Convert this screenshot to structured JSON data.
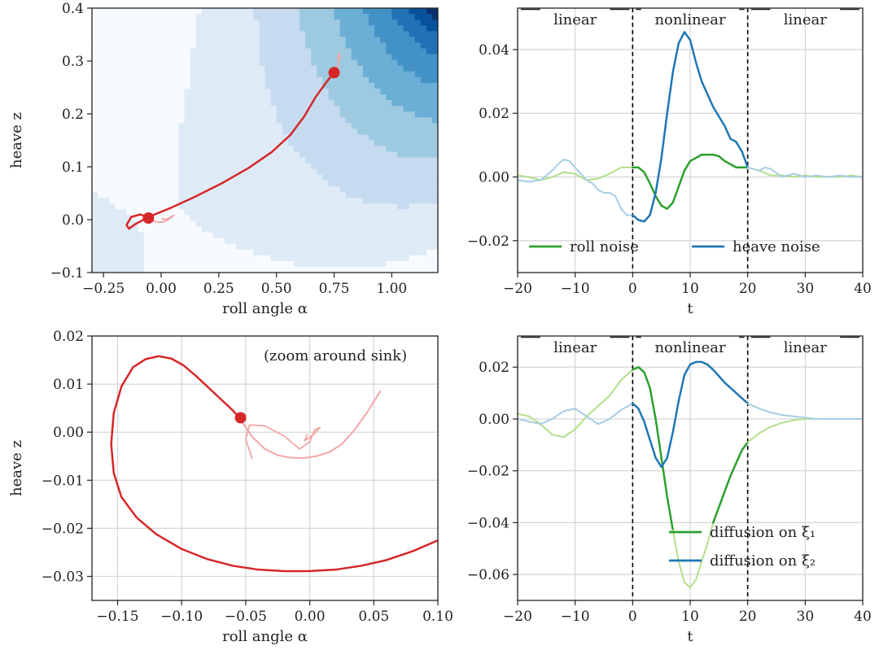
{
  "chart_data": [
    {
      "id": "tl",
      "type": "contour",
      "xlabel": "roll angle α",
      "ylabel": "heave z",
      "xlim": [
        -0.3,
        1.2
      ],
      "ylim": [
        -0.1,
        0.4
      ],
      "xticks": [
        -0.25,
        0.0,
        0.25,
        0.5,
        0.75,
        1.0
      ],
      "xtick_labels": [
        "−0.25",
        "0.00",
        "0.25",
        "0.50",
        "0.75",
        "1.00"
      ],
      "yticks": [
        -0.1,
        0.0,
        0.1,
        0.2,
        0.3,
        0.4
      ],
      "ytick_labels": [
        "−0.1",
        "0.0",
        "0.1",
        "0.2",
        "0.3",
        "0.4"
      ],
      "grid": false,
      "colormap": "Blues",
      "series": [
        {
          "color": "#d62728",
          "width": 2.5,
          "x": [
            0.75,
            0.72,
            0.67,
            0.62,
            0.56,
            0.48,
            0.38,
            0.26,
            0.14,
            0.04,
            -0.05,
            -0.11,
            -0.14,
            -0.15,
            -0.13,
            -0.09,
            -0.055
          ],
          "y": [
            0.278,
            0.262,
            0.232,
            0.195,
            0.16,
            0.128,
            0.098,
            0.068,
            0.042,
            0.022,
            0.006,
            -0.008,
            -0.017,
            -0.01,
            0.005,
            0.01,
            0.003
          ]
        },
        {
          "color": "#f4a6a6",
          "width": 2,
          "x": [
            0.75,
            0.765,
            0.77,
            0.768,
            0.775,
            0.772
          ],
          "y": [
            0.278,
            0.29,
            0.3,
            0.31,
            0.305,
            0.315
          ]
        },
        {
          "color": "#f4a6a6",
          "width": 2,
          "x": [
            -0.055,
            -0.03,
            -0.01,
            0.01,
            0.03,
            0.055,
            0.02,
            0.005
          ],
          "y": [
            0.003,
            -0.003,
            -0.005,
            -0.004,
            0.0,
            0.008,
            0.0,
            0.002
          ]
        }
      ],
      "markers": [
        {
          "x": 0.75,
          "y": 0.278,
          "color": "#d62728"
        },
        {
          "x": -0.055,
          "y": 0.003,
          "color": "#d62728"
        }
      ]
    },
    {
      "id": "tr",
      "type": "line",
      "xlabel": "t",
      "ylabel": "",
      "xlim": [
        -20,
        40
      ],
      "ylim": [
        -0.03,
        0.053
      ],
      "xticks": [
        -20,
        -10,
        0,
        10,
        20,
        30,
        40
      ],
      "xtick_labels": [
        "−20",
        "−10",
        "0",
        "10",
        "20",
        "30",
        "40"
      ],
      "yticks": [
        -0.02,
        0.0,
        0.02,
        0.04
      ],
      "ytick_labels": [
        "−0.02",
        "0.00",
        "0.02",
        "0.04"
      ],
      "grid": true,
      "vlines": [
        0,
        20
      ],
      "regions": [
        {
          "label": "linear",
          "x": -10
        },
        {
          "label": "nonlinear",
          "x": 10
        },
        {
          "label": "linear",
          "x": 30
        }
      ],
      "legend": {
        "placement": "lower-center",
        "entries": [
          {
            "name": "roll noise",
            "color": "#2ca02c"
          },
          {
            "name": "heave noise",
            "color": "#1f77b4"
          }
        ]
      },
      "series": [
        {
          "name": "roll noise",
          "color": "#b2df8a",
          "width": 2,
          "x": [
            -20,
            -18,
            -16,
            -14,
            -12,
            -10,
            -8,
            -6,
            -4,
            -2,
            0
          ],
          "y": [
            0.0005,
            0.0,
            -0.001,
            0.0,
            0.0015,
            0.001,
            -0.001,
            -0.0005,
            0.001,
            0.003,
            0.003
          ]
        },
        {
          "name": "roll noise",
          "color": "#2ca02c",
          "width": 2.5,
          "x": [
            0,
            1,
            2,
            3,
            4,
            5,
            6,
            7,
            8,
            9,
            10,
            12,
            14,
            15,
            16,
            17,
            18,
            19,
            20
          ],
          "y": [
            0.003,
            0.003,
            0.0015,
            -0.002,
            -0.006,
            -0.009,
            -0.01,
            -0.008,
            -0.003,
            0.002,
            0.005,
            0.007,
            0.007,
            0.0065,
            0.005,
            0.004,
            0.003,
            0.003,
            0.003
          ]
        },
        {
          "name": "roll noise",
          "color": "#b2df8a",
          "width": 2,
          "x": [
            20,
            22,
            24,
            26,
            28,
            30,
            32,
            34,
            36,
            38,
            40
          ],
          "y": [
            0.003,
            0.002,
            0.0005,
            0.0005,
            0.0,
            0.0005,
            0.0,
            0.0,
            0.0,
            0.0005,
            0.0
          ]
        },
        {
          "name": "heave noise",
          "color": "#a6cee3",
          "width": 2,
          "x": [
            -20,
            -18,
            -16,
            -14,
            -13,
            -12,
            -11,
            -10,
            -9,
            -8,
            -7,
            -6,
            -5,
            -4,
            -3,
            -2,
            -1,
            0
          ],
          "y": [
            -0.001,
            -0.0015,
            -0.001,
            0.002,
            0.004,
            0.0055,
            0.005,
            0.003,
            0.001,
            -0.001,
            -0.002,
            -0.004,
            -0.005,
            -0.005,
            -0.006,
            -0.01,
            -0.012,
            -0.012
          ]
        },
        {
          "name": "heave noise",
          "color": "#1f77b4",
          "width": 2.5,
          "x": [
            0,
            1,
            2,
            3,
            4,
            5,
            6,
            7,
            8,
            9,
            10,
            11,
            12,
            13,
            14,
            15,
            16,
            17,
            18,
            19,
            20
          ],
          "y": [
            -0.012,
            -0.0135,
            -0.014,
            -0.012,
            -0.005,
            0.006,
            0.02,
            0.033,
            0.042,
            0.0455,
            0.043,
            0.036,
            0.03,
            0.026,
            0.022,
            0.019,
            0.016,
            0.012,
            0.011,
            0.008,
            0.003
          ]
        },
        {
          "name": "heave noise",
          "color": "#a6cee3",
          "width": 2,
          "x": [
            20,
            22,
            23,
            24,
            26,
            28,
            30,
            32,
            34,
            36,
            38,
            40
          ],
          "y": [
            0.003,
            0.002,
            0.003,
            0.0025,
            0.0,
            0.001,
            0.0,
            0.0005,
            0.0,
            0.0005,
            0.0,
            0.0
          ]
        }
      ]
    },
    {
      "id": "bl",
      "type": "line",
      "xlabel": "roll angle α",
      "ylabel": "heave z",
      "xlim": [
        -0.17,
        0.1
      ],
      "ylim": [
        -0.035,
        0.02
      ],
      "xticks": [
        -0.15,
        -0.1,
        -0.05,
        0.0,
        0.05,
        0.1
      ],
      "xtick_labels": [
        "−0.15",
        "−0.10",
        "−0.05",
        "0.00",
        "0.05",
        "0.10"
      ],
      "yticks": [
        -0.03,
        -0.02,
        -0.01,
        0.0,
        0.01,
        0.02
      ],
      "ytick_labels": [
        "−0.03",
        "−0.02",
        "−0.01",
        "0.00",
        "0.01",
        "0.02"
      ],
      "grid": true,
      "annotation": "(zoom around sink)",
      "series": [
        {
          "color": "#d62728",
          "width": 2.5,
          "x": [
            0.1,
            0.08,
            0.06,
            0.04,
            0.02,
            0.0,
            -0.02,
            -0.04,
            -0.06,
            -0.08,
            -0.1,
            -0.12,
            -0.135,
            -0.147,
            -0.153,
            -0.155,
            -0.153,
            -0.147,
            -0.138,
            -0.128,
            -0.118,
            -0.108,
            -0.098,
            -0.088,
            -0.078,
            -0.068,
            -0.06,
            -0.055
          ],
          "y": [
            -0.0225,
            -0.0248,
            -0.0266,
            -0.0278,
            -0.0286,
            -0.0289,
            -0.0289,
            -0.0286,
            -0.0278,
            -0.0264,
            -0.0243,
            -0.0212,
            -0.0178,
            -0.0135,
            -0.0085,
            -0.0025,
            0.004,
            0.0095,
            0.0135,
            0.0152,
            0.0158,
            0.0153,
            0.0138,
            0.0115,
            0.009,
            0.0065,
            0.0045,
            0.003
          ]
        },
        {
          "color": "#f4a6a6",
          "width": 2,
          "x": [
            -0.055,
            -0.045,
            -0.035,
            -0.025,
            -0.015,
            -0.005,
            0.005,
            0.015,
            0.025,
            0.035,
            0.045,
            0.055
          ],
          "y": [
            0.003,
            -0.001,
            -0.0035,
            -0.0048,
            -0.0053,
            -0.0054,
            -0.005,
            -0.0042,
            -0.0025,
            0.0005,
            0.0042,
            0.0085
          ]
        },
        {
          "color": "#f4a6a6",
          "width": 1.8,
          "x": [
            -0.045,
            -0.05,
            -0.047,
            -0.035,
            -0.02,
            -0.008,
            0.0,
            0.004,
            0.008,
            0.003,
            -0.004,
            -0.002
          ],
          "y": [
            -0.0055,
            -0.0015,
            0.0015,
            0.0013,
            -0.0008,
            -0.0035,
            -0.002,
            0.0005,
            0.001,
            -0.0005,
            -0.0018,
            -0.0005
          ]
        }
      ],
      "markers": [
        {
          "x": -0.054,
          "y": 0.003,
          "color": "#d62728"
        }
      ]
    },
    {
      "id": "br",
      "type": "line",
      "xlabel": "t",
      "ylabel": "",
      "xlim": [
        -20,
        40
      ],
      "ylim": [
        -0.07,
        0.032
      ],
      "xticks": [
        -20,
        -10,
        0,
        10,
        20,
        30,
        40
      ],
      "xtick_labels": [
        "−20",
        "−10",
        "0",
        "10",
        "20",
        "30",
        "40"
      ],
      "yticks": [
        -0.06,
        -0.04,
        -0.02,
        0.0,
        0.02
      ],
      "ytick_labels": [
        "−0.06",
        "−0.04",
        "−0.02",
        "0.00",
        "0.02"
      ],
      "grid": true,
      "vlines": [
        0,
        20
      ],
      "regions": [
        {
          "label": "linear",
          "x": -10
        },
        {
          "label": "nonlinear",
          "x": 10
        },
        {
          "label": "linear",
          "x": 30
        }
      ],
      "legend": {
        "placement": "lower-right",
        "entries": [
          {
            "name": "diffusion on ξ₁",
            "color": "#2ca02c"
          },
          {
            "name": "diffusion on ξ₂",
            "color": "#1f77b4"
          }
        ]
      },
      "series": [
        {
          "name": "diffusion on ξ₁",
          "color": "#b2df8a",
          "width": 2,
          "x": [
            -20,
            -18,
            -16,
            -14,
            -12,
            -10,
            -8,
            -6,
            -4,
            -2,
            0
          ],
          "y": [
            0.002,
            0.001,
            -0.002,
            -0.006,
            -0.007,
            -0.004,
            0.001,
            0.005,
            0.009,
            0.015,
            0.019
          ]
        },
        {
          "name": "diffusion on ξ₁",
          "color": "#2ca02c",
          "width": 2.5,
          "x": [
            0,
            1,
            2,
            3,
            4,
            5,
            6,
            7
          ],
          "y": [
            0.019,
            0.02,
            0.018,
            0.012,
            0.0,
            -0.015,
            -0.03,
            -0.043
          ]
        },
        {
          "name": "diffusion on ξ₁",
          "color": "#b2df8a",
          "width": 2,
          "x": [
            7,
            8,
            9,
            10,
            11,
            12,
            13,
            14
          ],
          "y": [
            -0.043,
            -0.055,
            -0.063,
            -0.065,
            -0.062,
            -0.055,
            -0.048,
            -0.04
          ]
        },
        {
          "name": "diffusion on ξ₁",
          "color": "#2ca02c",
          "width": 2.5,
          "x": [
            14,
            15,
            16,
            17,
            18,
            19,
            20
          ],
          "y": [
            -0.04,
            -0.034,
            -0.028,
            -0.022,
            -0.017,
            -0.012,
            -0.009
          ]
        },
        {
          "name": "diffusion on ξ₁",
          "color": "#b2df8a",
          "width": 2,
          "x": [
            20,
            22,
            24,
            26,
            28,
            30,
            32,
            34,
            36,
            38,
            40
          ],
          "y": [
            -0.009,
            -0.0055,
            -0.003,
            -0.0015,
            -0.0005,
            0.0,
            0.0,
            0.0,
            0.0,
            0.0,
            0.0
          ]
        },
        {
          "name": "diffusion on ξ₂",
          "color": "#a6cee3",
          "width": 2,
          "x": [
            -20,
            -18,
            -16,
            -14,
            -12,
            -10,
            -8,
            -6,
            -4,
            -2,
            0
          ],
          "y": [
            0.0,
            -0.001,
            -0.002,
            0.0,
            0.003,
            0.004,
            0.001,
            -0.002,
            0.0,
            0.0035,
            0.006
          ]
        },
        {
          "name": "diffusion on ξ₂",
          "color": "#1f77b4",
          "width": 2.5,
          "x": [
            0,
            1,
            2,
            3,
            4,
            5,
            6,
            7,
            8,
            9,
            10,
            11,
            12,
            13,
            14,
            15,
            16,
            17,
            18,
            19,
            20
          ],
          "y": [
            0.006,
            0.004,
            -0.001,
            -0.008,
            -0.015,
            -0.0185,
            -0.015,
            -0.005,
            0.007,
            0.017,
            0.021,
            0.022,
            0.022,
            0.021,
            0.019,
            0.0165,
            0.014,
            0.012,
            0.01,
            0.008,
            0.006
          ]
        },
        {
          "name": "diffusion on ξ₂",
          "color": "#a6cee3",
          "width": 2,
          "x": [
            20,
            22,
            24,
            26,
            28,
            30,
            32,
            34,
            36,
            38,
            40
          ],
          "y": [
            0.006,
            0.004,
            0.0025,
            0.0015,
            0.001,
            0.0005,
            0.0,
            0.0,
            0.0,
            0.0,
            0.0
          ]
        }
      ]
    }
  ]
}
